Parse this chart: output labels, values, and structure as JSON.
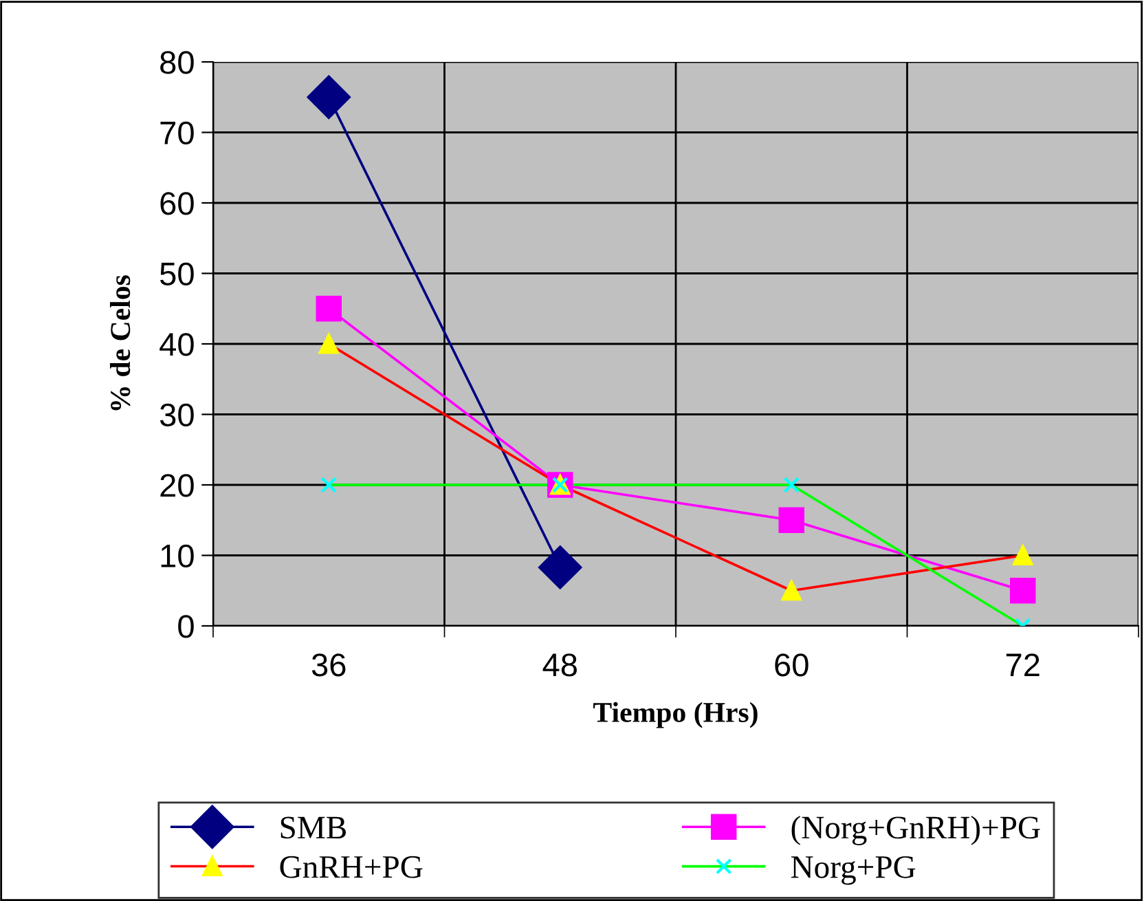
{
  "chart_data": {
    "type": "line",
    "xlabel": "Tiempo (Hrs)",
    "ylabel": "% de Celos",
    "categories": [
      "36",
      "48",
      "60",
      "72"
    ],
    "series": [
      {
        "name": "SMB",
        "color": "#000080",
        "colors": [
          "#000080",
          "#000080",
          "#000080",
          "#000080"
        ],
        "marker": "diamond",
        "values": [
          75,
          8.3,
          null,
          null
        ]
      },
      {
        "name": "(Norg+GnRH)+PG",
        "color": "#ff00ff",
        "colors": [
          "#ff00ff",
          "#ff00ff",
          "#ff00ff",
          "#ff00ff"
        ],
        "marker": "square",
        "values": [
          45,
          20,
          15,
          5
        ]
      },
      {
        "name": "GnRH+PG",
        "color": "#ff0000",
        "colors": [
          "#ffff00",
          "#ffff00",
          "#ffff00",
          "#ffff00"
        ],
        "marker": "triangle",
        "values": [
          40,
          20,
          5,
          10
        ]
      },
      {
        "name": "Norg+PG",
        "color": "#00ff00",
        "colors": [
          "#00ffff",
          "#00ffff",
          "#00ffff",
          "#00ffff"
        ],
        "marker": "cross",
        "values": [
          20,
          20,
          20,
          0
        ]
      }
    ],
    "ylim": [
      0,
      80
    ],
    "yticks": [
      0,
      10,
      20,
      30,
      40,
      50,
      60,
      70,
      80
    ],
    "grid": true,
    "legend": "bottom",
    "line_style": "solid"
  }
}
